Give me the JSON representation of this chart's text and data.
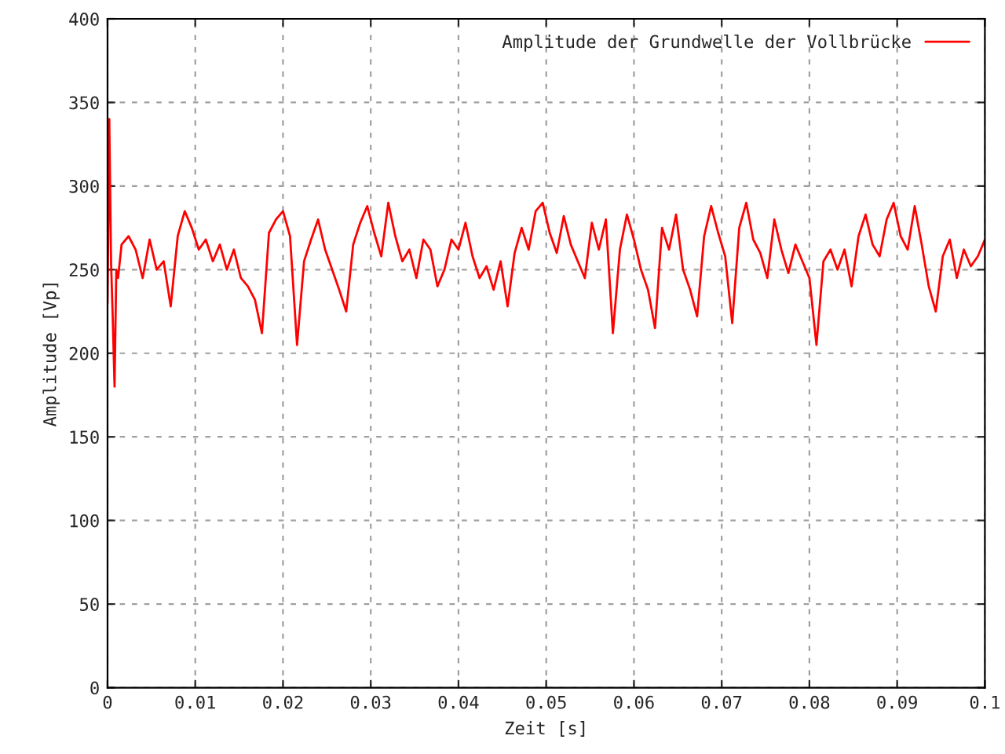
{
  "chart_data": {
    "type": "line",
    "xlabel": "Zeit [s]",
    "ylabel": "Amplitude [Vp]",
    "xlim": [
      0,
      0.1
    ],
    "ylim": [
      0,
      400
    ],
    "xticks": [
      0,
      0.01,
      0.02,
      0.03,
      0.04,
      0.05,
      0.06,
      0.07,
      0.08,
      0.09,
      0.1
    ],
    "yticks": [
      0,
      50,
      100,
      150,
      200,
      250,
      300,
      350,
      400
    ],
    "grid": true,
    "legend": "top right",
    "marker": "none",
    "line_style": "solid",
    "series": [
      {
        "name": "Amplitude der Grundwelle der Vollbrücke",
        "color": "#ff0000",
        "x": [
          0,
          0.0002,
          0.0004,
          0.0006,
          0.0008,
          0.001,
          0.0012,
          0.0016,
          0.0024,
          0.0032,
          0.004,
          0.0048,
          0.0056,
          0.0064,
          0.0072,
          0.008,
          0.0088,
          0.0096,
          0.0104,
          0.0112,
          0.012,
          0.0128,
          0.0136,
          0.0144,
          0.0152,
          0.016,
          0.0168,
          0.0176,
          0.0184,
          0.0192,
          0.02,
          0.0208,
          0.0216,
          0.0224,
          0.0232,
          0.024,
          0.0248,
          0.0256,
          0.0264,
          0.0272,
          0.028,
          0.0288,
          0.0296,
          0.0304,
          0.0312,
          0.032,
          0.0328,
          0.0336,
          0.0344,
          0.0352,
          0.036,
          0.0368,
          0.0376,
          0.0384,
          0.0392,
          0.04,
          0.0408,
          0.0416,
          0.0424,
          0.0432,
          0.044,
          0.0448,
          0.0456,
          0.0464,
          0.0472,
          0.048,
          0.0488,
          0.0496,
          0.0504,
          0.0512,
          0.052,
          0.0528,
          0.0536,
          0.0544,
          0.0552,
          0.056,
          0.0568,
          0.0576,
          0.0584,
          0.0592,
          0.06,
          0.0608,
          0.0616,
          0.0624,
          0.0632,
          0.064,
          0.0648,
          0.0656,
          0.0664,
          0.0672,
          0.068,
          0.0688,
          0.0696,
          0.0704,
          0.0712,
          0.072,
          0.0728,
          0.0736,
          0.0744,
          0.0752,
          0.076,
          0.0768,
          0.0776,
          0.0784,
          0.0792,
          0.08,
          0.0808,
          0.0816,
          0.0824,
          0.0832,
          0.084,
          0.0848,
          0.0856,
          0.0864,
          0.0872,
          0.088,
          0.0888,
          0.0896,
          0.0904,
          0.0912,
          0.092,
          0.0928,
          0.0936,
          0.0944,
          0.0952,
          0.096,
          0.0968,
          0.0976,
          0.0984,
          0.0992,
          0.1
        ],
        "values": [
          230,
          340,
          255,
          220,
          180,
          250,
          245,
          265,
          270,
          262,
          245,
          268,
          250,
          255,
          228,
          270,
          285,
          275,
          262,
          268,
          255,
          265,
          250,
          262,
          245,
          240,
          232,
          212,
          272,
          280,
          285,
          270,
          205,
          255,
          268,
          280,
          262,
          250,
          238,
          225,
          265,
          278,
          288,
          272,
          258,
          290,
          270,
          255,
          262,
          245,
          268,
          262,
          240,
          250,
          268,
          262,
          278,
          258,
          245,
          252,
          238,
          255,
          228,
          260,
          275,
          262,
          285,
          290,
          272,
          260,
          282,
          265,
          255,
          245,
          278,
          262,
          280,
          212,
          262,
          283,
          268,
          250,
          238,
          215,
          275,
          262,
          283,
          250,
          238,
          222,
          270,
          288,
          272,
          258,
          218,
          275,
          290,
          268,
          260,
          245,
          280,
          262,
          248,
          265,
          255,
          245,
          205,
          255,
          262,
          250,
          262,
          240,
          270,
          283,
          265,
          258,
          280,
          290,
          270,
          262,
          288,
          265,
          240,
          225,
          258,
          268,
          245,
          262,
          252,
          258,
          268
        ]
      }
    ]
  }
}
